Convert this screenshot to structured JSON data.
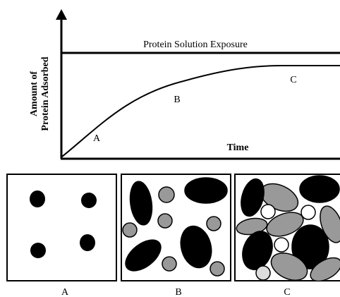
{
  "plot": {
    "y_label": [
      "Amount of",
      "Protein Adsorbed"
    ],
    "x_label": "Time",
    "exposure_label": "Protein Solution Exposure",
    "curve_labels": [
      "A",
      "B",
      "C"
    ]
  },
  "panels": [
    {
      "label": "A"
    },
    {
      "label": "B"
    },
    {
      "label": "C"
    }
  ]
}
